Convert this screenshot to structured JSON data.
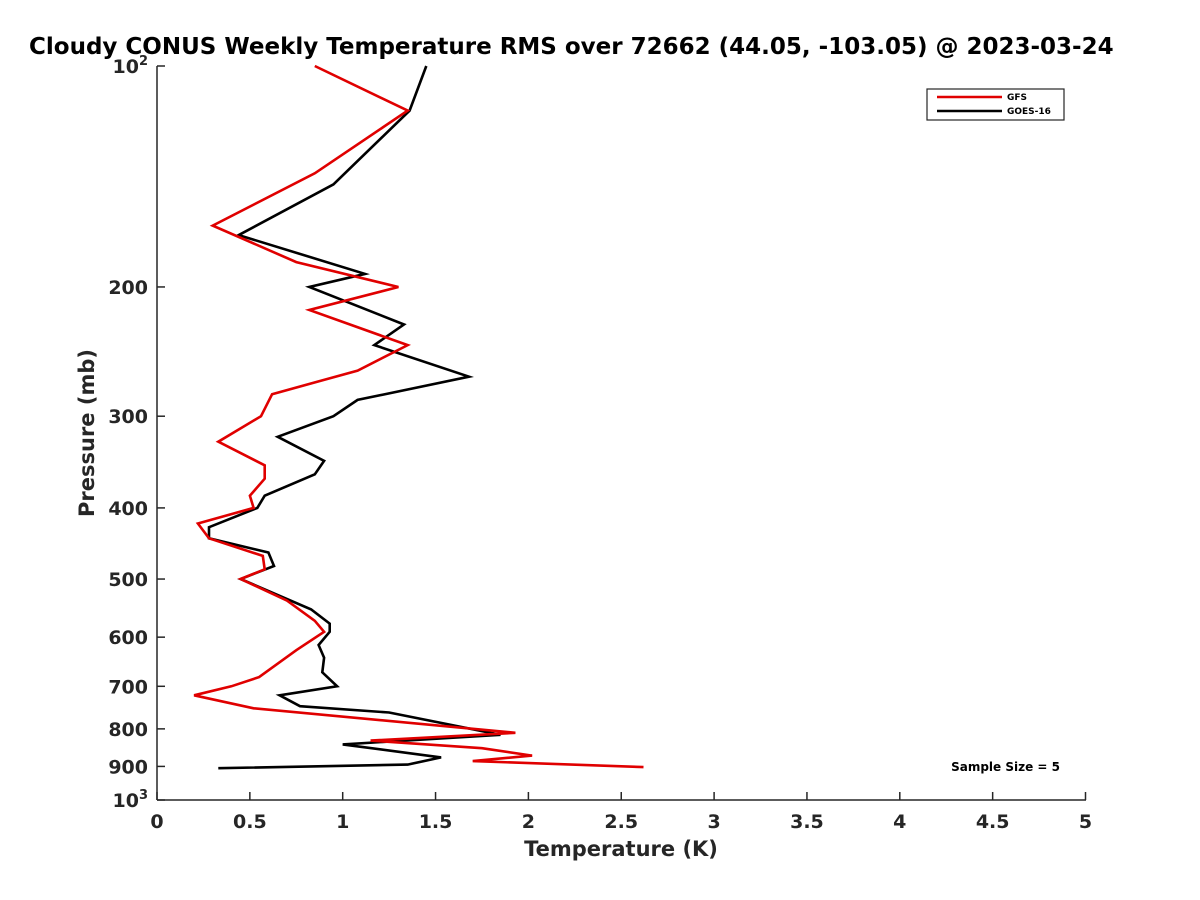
{
  "chart_data": {
    "type": "line",
    "title": "Cloudy CONUS Weekly Temperature RMS over 72662 (44.05, -103.05) @ 2023-03-24",
    "xlabel": "Temperature (K)",
    "ylabel": "Pressure (mb)",
    "xlim": [
      0,
      5
    ],
    "ylim": [
      100,
      1000
    ],
    "y_scale": "log",
    "y_reversed": true,
    "x_ticks": [
      "0",
      "0.5",
      "1",
      "1.5",
      "2",
      "2.5",
      "3",
      "3.5",
      "4",
      "4.5",
      "5"
    ],
    "y_ticks": [
      {
        "value": 100,
        "label": "10",
        "sup": "2"
      },
      {
        "value": 200,
        "label": "200",
        "sup": ""
      },
      {
        "value": 300,
        "label": "300",
        "sup": ""
      },
      {
        "value": 400,
        "label": "400",
        "sup": ""
      },
      {
        "value": 500,
        "label": "500",
        "sup": ""
      },
      {
        "value": 600,
        "label": "600",
        "sup": ""
      },
      {
        "value": 700,
        "label": "700",
        "sup": ""
      },
      {
        "value": 800,
        "label": "800",
        "sup": ""
      },
      {
        "value": 900,
        "label": "900",
        "sup": ""
      },
      {
        "value": 1000,
        "label": "10",
        "sup": "3"
      }
    ],
    "grid": false,
    "legend_position": "top-right",
    "annotation": "Sample Size = 5",
    "series": [
      {
        "name": "GFS",
        "color": "#e00000",
        "points": [
          [
            0.85,
            100
          ],
          [
            1.35,
            115
          ],
          [
            0.85,
            140
          ],
          [
            0.3,
            165
          ],
          [
            0.75,
            185
          ],
          [
            1.3,
            200
          ],
          [
            0.82,
            215
          ],
          [
            1.35,
            240
          ],
          [
            1.08,
            260
          ],
          [
            0.62,
            280
          ],
          [
            0.56,
            300
          ],
          [
            0.33,
            325
          ],
          [
            0.58,
            350
          ],
          [
            0.58,
            365
          ],
          [
            0.5,
            385
          ],
          [
            0.52,
            400
          ],
          [
            0.22,
            420
          ],
          [
            0.28,
            440
          ],
          [
            0.57,
            465
          ],
          [
            0.58,
            485
          ],
          [
            0.45,
            500
          ],
          [
            0.7,
            535
          ],
          [
            0.85,
            570
          ],
          [
            0.9,
            590
          ],
          [
            0.75,
            625
          ],
          [
            0.55,
            680
          ],
          [
            0.4,
            700
          ],
          [
            0.2,
            720
          ],
          [
            0.52,
            750
          ],
          [
            1.93,
            810
          ],
          [
            1.15,
            830
          ],
          [
            1.75,
            850
          ],
          [
            2.02,
            870
          ],
          [
            1.7,
            885
          ],
          [
            2.62,
            902
          ]
        ]
      },
      {
        "name": "GOES-16",
        "color": "#000000",
        "points": [
          [
            1.45,
            100
          ],
          [
            1.36,
            115
          ],
          [
            0.95,
            145
          ],
          [
            0.44,
            170
          ],
          [
            1.12,
            192
          ],
          [
            0.82,
            200
          ],
          [
            1.33,
            225
          ],
          [
            1.17,
            240
          ],
          [
            1.68,
            265
          ],
          [
            1.08,
            285
          ],
          [
            0.95,
            300
          ],
          [
            0.65,
            320
          ],
          [
            0.9,
            345
          ],
          [
            0.85,
            360
          ],
          [
            0.58,
            385
          ],
          [
            0.54,
            400
          ],
          [
            0.28,
            425
          ],
          [
            0.28,
            440
          ],
          [
            0.6,
            460
          ],
          [
            0.63,
            480
          ],
          [
            0.45,
            500
          ],
          [
            0.83,
            550
          ],
          [
            0.93,
            575
          ],
          [
            0.93,
            590
          ],
          [
            0.87,
            615
          ],
          [
            0.9,
            640
          ],
          [
            0.89,
            670
          ],
          [
            0.97,
            700
          ],
          [
            0.66,
            720
          ],
          [
            0.77,
            745
          ],
          [
            1.25,
            760
          ],
          [
            1.85,
            815
          ],
          [
            1.0,
            840
          ],
          [
            1.53,
            875
          ],
          [
            1.35,
            895
          ],
          [
            0.33,
            905
          ]
        ]
      }
    ]
  }
}
